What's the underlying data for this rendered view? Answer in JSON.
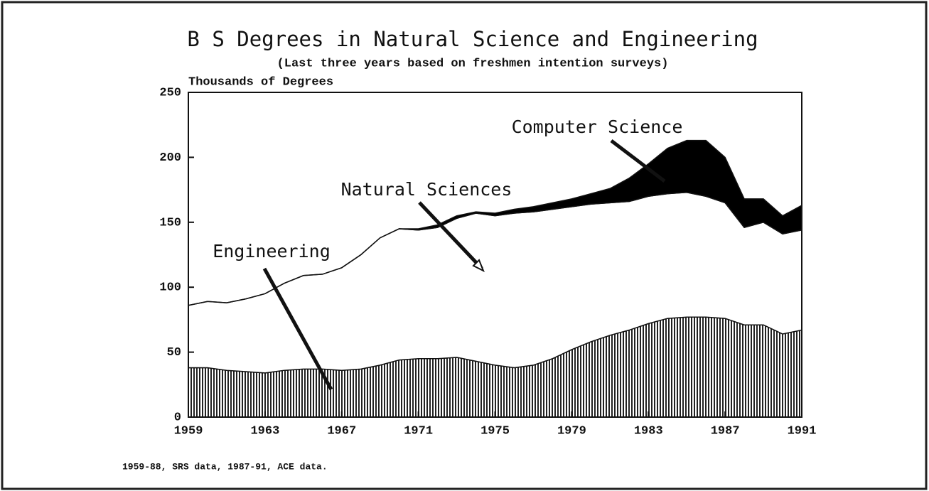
{
  "chart_data": {
    "type": "stacked_area",
    "title": "B S Degrees in Natural Science and Engineering",
    "subtitle": "(Last three years based on freshmen intention surveys)",
    "y_label": "Thousands of Degrees",
    "footnote": "1959-88, SRS data, 1987-91, ACE data.",
    "x": [
      1959,
      1960,
      1961,
      1962,
      1963,
      1964,
      1965,
      1966,
      1967,
      1968,
      1969,
      1970,
      1971,
      1972,
      1973,
      1974,
      1975,
      1976,
      1977,
      1978,
      1979,
      1980,
      1981,
      1982,
      1983,
      1984,
      1985,
      1986,
      1987,
      1988,
      1989,
      1990,
      1991
    ],
    "series": [
      {
        "name": "Engineering",
        "color": "#000000",
        "values": [
          38,
          38,
          36,
          35,
          34,
          36,
          37,
          37,
          36,
          37,
          40,
          44,
          45,
          45,
          46,
          43,
          40,
          38,
          40,
          45,
          52,
          58,
          63,
          67,
          72,
          76,
          77,
          77,
          76,
          71,
          71,
          64,
          67
        ]
      },
      {
        "name": "Natural Sciences",
        "color": "#ffffff",
        "values": [
          48,
          51,
          52,
          56,
          61,
          67,
          72,
          73,
          79,
          88,
          98,
          101,
          99,
          101,
          107,
          114,
          115,
          119,
          118,
          115,
          110,
          106,
          102,
          99,
          98,
          96,
          96,
          93,
          89,
          75,
          79,
          77,
          77
        ]
      },
      {
        "name": "Computer Science",
        "color": "#000000",
        "values": [
          0,
          0,
          0,
          0,
          0,
          0,
          0,
          0,
          0,
          0,
          0,
          0,
          1,
          2,
          2,
          1,
          2,
          3,
          4,
          5,
          6,
          8,
          11,
          18,
          25,
          35,
          40,
          43,
          35,
          22,
          18,
          14,
          19
        ]
      }
    ],
    "xlim": [
      1959,
      1991
    ],
    "xticks": [
      1959,
      1963,
      1967,
      1971,
      1975,
      1979,
      1983,
      1987,
      1991
    ],
    "ylim": [
      0,
      250
    ],
    "yticks": [
      0,
      50,
      100,
      150,
      200,
      250
    ]
  }
}
